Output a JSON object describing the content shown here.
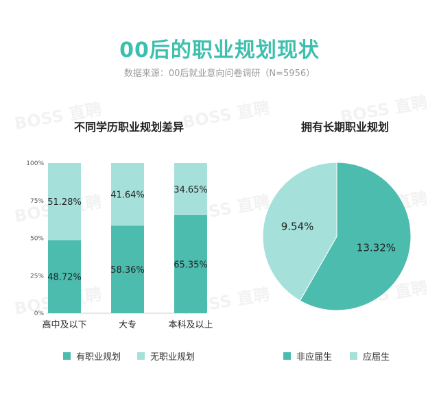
{
  "header": {
    "title": "00后的职业规划现状",
    "subtitle": "数据来源：00后就业意向问卷调研（N=5956）",
    "watermark": "BOSS 直聘"
  },
  "colors": {
    "primary": "#4cbcae",
    "secondary": "#a6e0db",
    "title": "#3dbfae"
  },
  "chart_data": [
    {
      "type": "bar",
      "stacked": true,
      "percent": true,
      "title": "不同学历职业规划差异",
      "categories": [
        "高中及以下",
        "大专",
        "本科及以上"
      ],
      "series": [
        {
          "name": "有职业规划",
          "values": [
            48.72,
            58.36,
            65.35
          ],
          "labels": [
            "48.72%",
            "58.36%",
            "65.35%"
          ],
          "color": "#4cbcae"
        },
        {
          "name": "无职业规划",
          "values": [
            51.28,
            41.64,
            34.65
          ],
          "labels": [
            "51.28%",
            "41.64%",
            "34.65%"
          ],
          "color": "#a6e0db"
        }
      ],
      "ylim": [
        0,
        100
      ],
      "yticks": [
        "0%",
        "25%",
        "50%",
        "75%",
        "100%"
      ],
      "legend_position": "bottom"
    },
    {
      "type": "pie",
      "title": "拥有长期职业规划",
      "slices": [
        {
          "name": "非应届生",
          "value": 13.32,
          "label": "13.32%",
          "color": "#4cbcae"
        },
        {
          "name": "应届生",
          "value": 9.54,
          "label": "9.54%",
          "color": "#a6e0db"
        }
      ],
      "legend_position": "bottom"
    }
  ]
}
